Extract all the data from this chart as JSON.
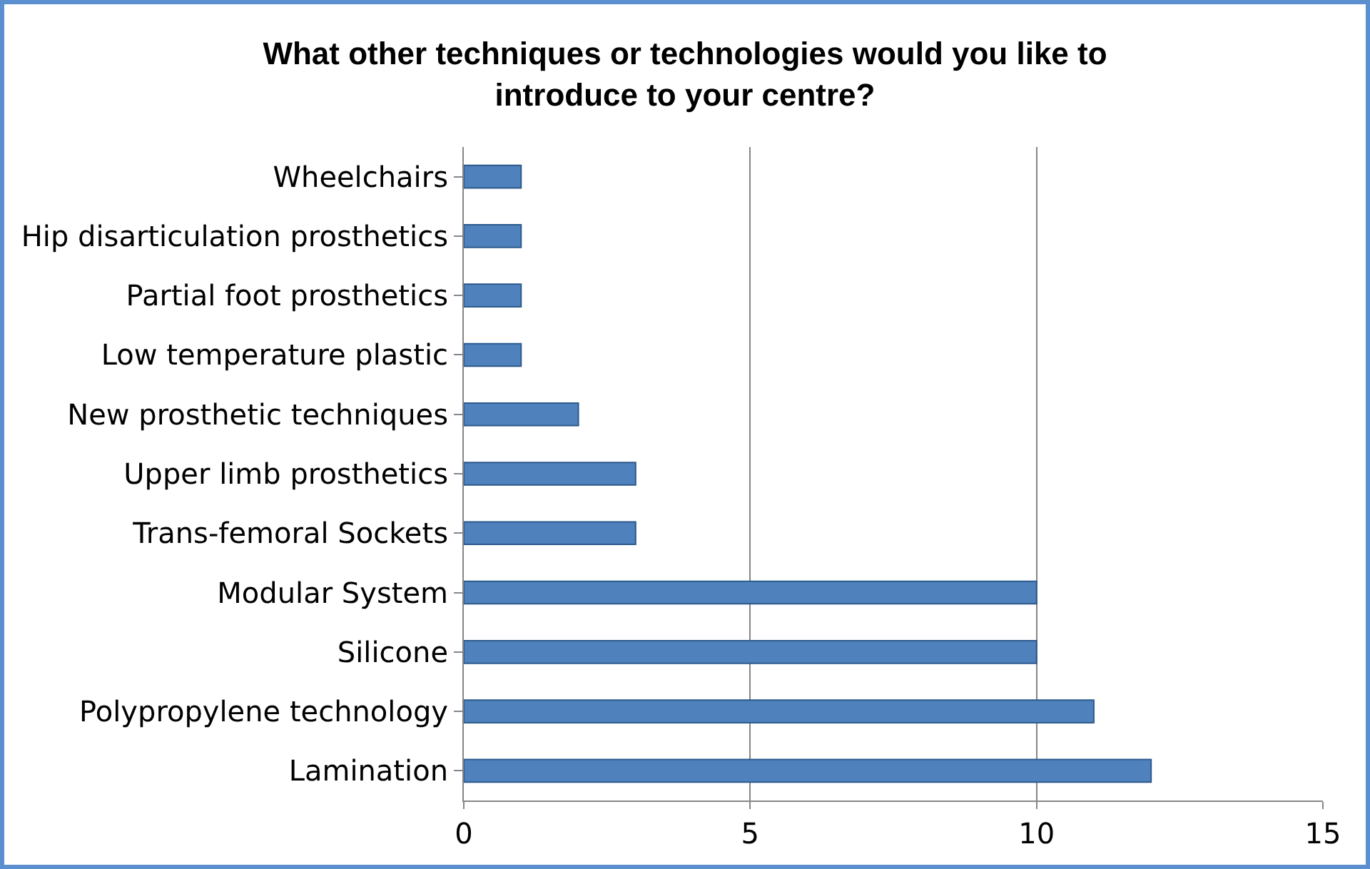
{
  "chart_data": {
    "type": "bar",
    "orientation": "horizontal",
    "title": "What other techniques or technologies would you like to introduce to your centre?",
    "categories": [
      "Wheelchairs",
      "Hip disarticulation prosthetics",
      "Partial foot prosthetics",
      "Low temperature plastic",
      "New prosthetic techniques",
      "Upper limb prosthetics",
      "Trans-femoral Sockets",
      "Modular System",
      "Silicone",
      "Polypropylene technology",
      "Lamination"
    ],
    "values": [
      1,
      1,
      1,
      1,
      2,
      3,
      3,
      10,
      10,
      11,
      12
    ],
    "color": "#4f81bd",
    "xlim": [
      0,
      15
    ],
    "xticks": [
      0,
      5,
      10,
      15
    ],
    "grid": "x"
  }
}
